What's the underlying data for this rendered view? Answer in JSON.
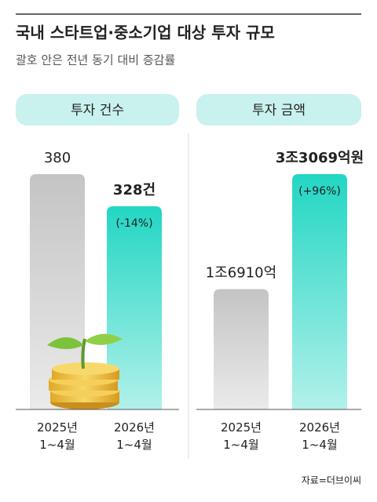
{
  "header": {
    "title": "국내 스타트업·중소기업 대상 투자 규모",
    "subtitle": "괄호 안은 전년 동기 대비 증감률"
  },
  "chart_data": [
    {
      "type": "bar",
      "title": "투자 건수",
      "categories": [
        "2025년\n1~4월",
        "2026년\n1~4월"
      ],
      "values": [
        380,
        328
      ],
      "value_labels": [
        "380",
        "328건"
      ],
      "annotation": "(-14%)",
      "colors": [
        "#c4c4c4",
        "#22d6c3"
      ]
    },
    {
      "type": "bar",
      "title": "투자 금액",
      "categories": [
        "2025년\n1~4월",
        "2026년\n1~4월"
      ],
      "values": [
        16910,
        33069
      ],
      "value_labels": [
        "1조6910억",
        "3조3069억원"
      ],
      "annotation": "(+96%)",
      "colors": [
        "#c4c4c4",
        "#22d6c3"
      ]
    }
  ],
  "source": "자료=더브이씨"
}
